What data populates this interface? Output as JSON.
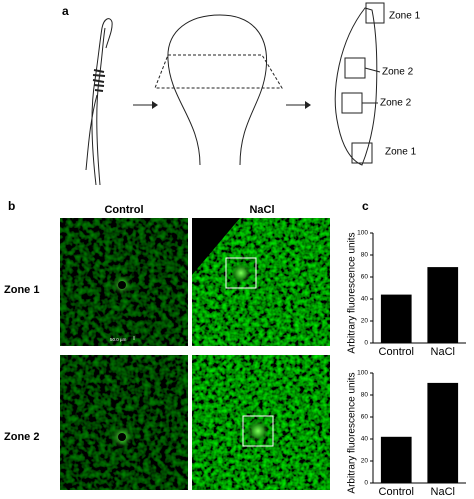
{
  "figure": {
    "panel_labels": [
      "a",
      "b",
      "c"
    ],
    "panel_a": {
      "zone_labels": [
        "Zone 1",
        "Zone 2",
        "Zone 2",
        "Zone 1"
      ]
    },
    "panel_b": {
      "column_labels": [
        "Control",
        "NaCl"
      ],
      "row_labels": [
        "Zone 1",
        "Zone 2"
      ],
      "scale_bar": "50.0 µm"
    }
  },
  "chart_data": [
    {
      "type": "bar",
      "y_label": "Arbitrary fluorescence units",
      "categories": [
        "Control",
        "NaCl"
      ],
      "values": [
        44,
        69
      ],
      "color": "#000000",
      "ylim": [
        0,
        100
      ],
      "yticks": [
        0,
        20,
        40,
        60,
        80,
        100
      ]
    },
    {
      "type": "bar",
      "y_label": "Arbitrary fluorescence units",
      "categories": [
        "Control",
        "NaCl"
      ],
      "values": [
        42,
        91
      ],
      "color": "#000000",
      "ylim": [
        0,
        100
      ],
      "yticks": [
        0,
        20,
        40,
        60,
        80,
        100
      ]
    }
  ]
}
